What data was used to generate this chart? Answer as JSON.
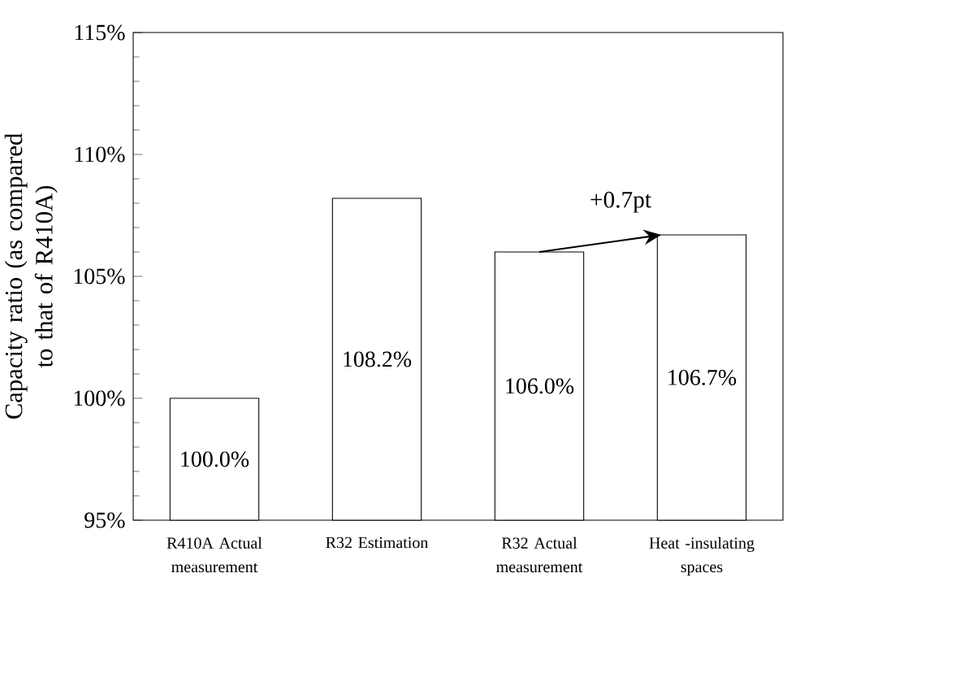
{
  "chart_data": {
    "type": "bar",
    "ylabel": "Capacity ratio (as compared to that of R410A)",
    "categories": [
      "R410A Actual measurement",
      "R32 Estimation",
      "R32 Actual measurement",
      "Heat -insulating spaces"
    ],
    "values": [
      100.0,
      108.2,
      106.0,
      106.7
    ],
    "value_labels": [
      "100.0%",
      "108.2%",
      "106.0%",
      "106.7%"
    ],
    "color": "#ffffff",
    "ylim": [
      95,
      115
    ],
    "yticks": [
      {
        "value": 95,
        "label": "95%"
      },
      {
        "value": 100,
        "label": "100%"
      },
      {
        "value": 105,
        "label": "105%"
      },
      {
        "value": 110,
        "label": "110%"
      },
      {
        "value": 115,
        "label": "115%"
      }
    ],
    "grid": false,
    "annotations": [
      {
        "text": "+0.7pt",
        "x": "Heat -insulating spaces",
        "y": 106.7
      }
    ]
  }
}
